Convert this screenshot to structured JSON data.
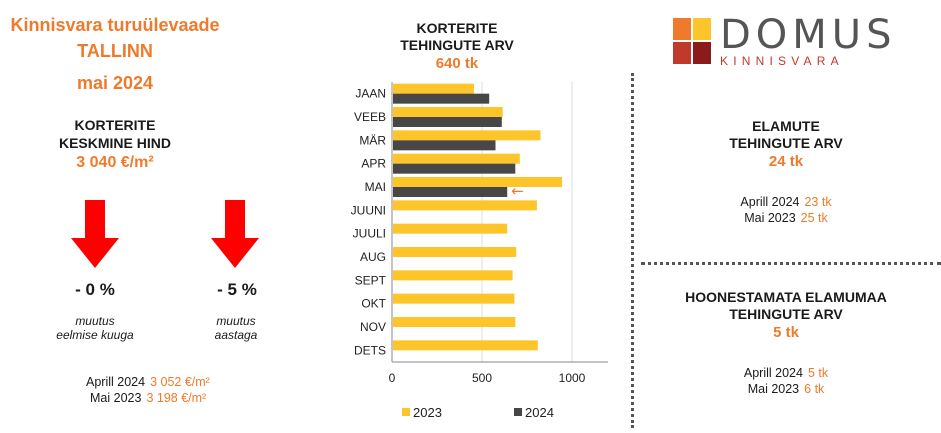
{
  "left": {
    "title_line1": "Kinnisvara turuülevaade",
    "title_line2": "TALLINN",
    "title_line3": "mai 2024",
    "price_heading_line1": "KORTERITE",
    "price_heading_line2": "KESKMINE HIND",
    "price_value": "3 040 €/m²",
    "change_month": {
      "value": "- 0 %",
      "note_line1": "muutus",
      "note_line2": "eelmise kuuga"
    },
    "change_year": {
      "value": "- 5 %",
      "note_line1": "muutus",
      "note_line2": "aastaga"
    },
    "comparisons": [
      {
        "label": "Aprill 2024",
        "value": "3 052 €/m²"
      },
      {
        "label": "Mai 2023",
        "value": "3 198 €/m²"
      }
    ],
    "arrow_color": "#ff0000"
  },
  "chart_heading": {
    "line1": "KORTERITE",
    "line2": "TEHINGUTE ARV",
    "value": "640 tk"
  },
  "chart_data": {
    "type": "bar",
    "orientation": "horizontal",
    "categories": [
      "JAAN",
      "VEEB",
      "MÄR",
      "APR",
      "MAI",
      "JUUNI",
      "JUULI",
      "AUG",
      "SEPT",
      "OKT",
      "NOV",
      "DETS"
    ],
    "series": [
      {
        "name": "2023",
        "color": "#fdc52a",
        "values": [
          455,
          615,
          825,
          710,
          945,
          805,
          640,
          690,
          670,
          680,
          685,
          810
        ]
      },
      {
        "name": "2024",
        "color": "#474747",
        "values": [
          540,
          610,
          575,
          685,
          640,
          null,
          null,
          null,
          null,
          null,
          null,
          null
        ]
      }
    ],
    "xlim": [
      0,
      1200
    ],
    "xticks": [
      0,
      500,
      1000
    ],
    "grid": true,
    "legend_position": "bottom",
    "highlight_category": "MAI",
    "highlight_symbol": "←",
    "highlight_color": "#f07a2c"
  },
  "right": {
    "houses": {
      "heading_line1": "ELAMUTE",
      "heading_line2": "TEHINGUTE ARV",
      "value": "24 tk",
      "comparisons": [
        {
          "label": "Aprill 2024",
          "value": "23 tk"
        },
        {
          "label": "Mai 2023",
          "value": "25 tk"
        }
      ]
    },
    "land": {
      "heading_line1": "HOONESTAMATA ELAMUMAA",
      "heading_line2": "TEHINGUTE ARV",
      "value": "5 tk",
      "comparisons": [
        {
          "label": "Aprill 2024",
          "value": "5 tk"
        },
        {
          "label": "Mai 2023",
          "value": "6 tk"
        }
      ]
    }
  },
  "logo": {
    "word": "DOMUS",
    "sub": "KINNISVARA",
    "colors": [
      "#f07a2c",
      "#fdc52a",
      "#c0392b",
      "#8b1a1a"
    ]
  }
}
